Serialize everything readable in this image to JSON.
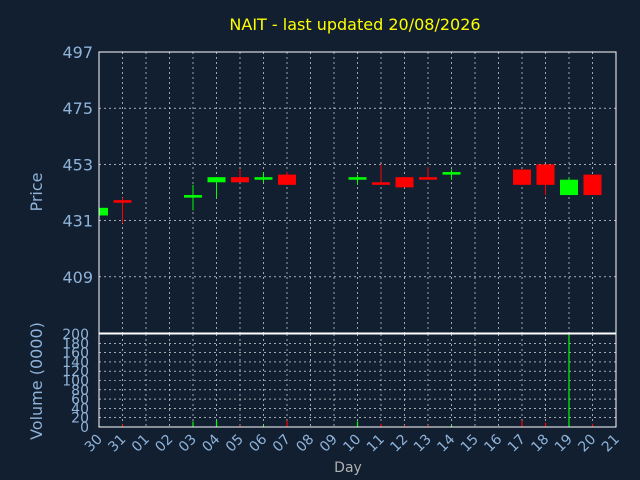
{
  "chart_data": [
    {
      "type": "candlestick",
      "title": "NAIT - last updated 20/08/2026",
      "ylabel": "Price",
      "ylim": [
        387,
        497
      ],
      "yticks": [
        497,
        475,
        453,
        431,
        409
      ],
      "x": [
        "30",
        "31",
        "01",
        "02",
        "03",
        "04",
        "05",
        "06",
        "07",
        "08",
        "09",
        "10",
        "11",
        "12",
        "13",
        "14",
        "15",
        "16",
        "17",
        "18",
        "19",
        "20",
        "21"
      ],
      "colors": {
        "up": "#00ff00",
        "down": "#ff0000",
        "grid": "#ffffff"
      },
      "candles": [
        {
          "day": "30",
          "open": 433,
          "high": 437,
          "low": 433,
          "close": 436
        },
        {
          "day": "31",
          "open": 439,
          "high": 440,
          "low": 430,
          "close": 438
        },
        {
          "day": "03",
          "open": 440,
          "high": 445,
          "low": 435,
          "close": 441
        },
        {
          "day": "04",
          "open": 446,
          "high": 448,
          "low": 440,
          "close": 448
        },
        {
          "day": "05",
          "open": 448,
          "high": 451,
          "low": 446,
          "close": 446
        },
        {
          "day": "06",
          "open": 447,
          "high": 450,
          "low": 446,
          "close": 448
        },
        {
          "day": "07",
          "open": 449,
          "high": 450,
          "low": 445,
          "close": 445
        },
        {
          "day": "10",
          "open": 447,
          "high": 449,
          "low": 445,
          "close": 448
        },
        {
          "day": "11",
          "open": 446,
          "high": 453,
          "low": 445,
          "close": 445
        },
        {
          "day": "12",
          "open": 448,
          "high": 448,
          "low": 444,
          "close": 444
        },
        {
          "day": "13",
          "open": 448,
          "high": 452,
          "low": 447,
          "close": 447
        },
        {
          "day": "14",
          "open": 449,
          "high": 451,
          "low": 447,
          "close": 450
        },
        {
          "day": "17",
          "open": 451,
          "high": 451,
          "low": 445,
          "close": 445
        },
        {
          "day": "18",
          "open": 453,
          "high": 453,
          "low": 441,
          "close": 445
        },
        {
          "day": "19",
          "open": 441,
          "high": 448,
          "low": 441,
          "close": 447
        },
        {
          "day": "20",
          "open": 449,
          "high": 449,
          "low": 441,
          "close": 441
        }
      ]
    },
    {
      "type": "bar",
      "ylabel": "Volume (0000)",
      "xlabel": "Day",
      "ylim": [
        0,
        200
      ],
      "yticks": [
        0,
        20,
        40,
        60,
        80,
        100,
        120,
        140,
        160,
        180,
        200
      ],
      "x": [
        "30",
        "31",
        "01",
        "02",
        "03",
        "04",
        "05",
        "06",
        "07",
        "08",
        "09",
        "10",
        "11",
        "12",
        "13",
        "14",
        "15",
        "16",
        "17",
        "18",
        "19",
        "20",
        "21"
      ],
      "volumes": [
        {
          "day": "30",
          "value": 3,
          "direction": "up"
        },
        {
          "day": "31",
          "value": 6,
          "direction": "down"
        },
        {
          "day": "03",
          "value": 12,
          "direction": "up"
        },
        {
          "day": "04",
          "value": 14,
          "direction": "up"
        },
        {
          "day": "05",
          "value": 4,
          "direction": "down"
        },
        {
          "day": "06",
          "value": 3,
          "direction": "up"
        },
        {
          "day": "07",
          "value": 14,
          "direction": "down"
        },
        {
          "day": "10",
          "value": 12,
          "direction": "up"
        },
        {
          "day": "11",
          "value": 7,
          "direction": "down"
        },
        {
          "day": "12",
          "value": 4,
          "direction": "down"
        },
        {
          "day": "13",
          "value": 4,
          "direction": "down"
        },
        {
          "day": "14",
          "value": 3,
          "direction": "up"
        },
        {
          "day": "17",
          "value": 14,
          "direction": "down"
        },
        {
          "day": "18",
          "value": 9,
          "direction": "down"
        },
        {
          "day": "19",
          "value": 200,
          "direction": "up"
        },
        {
          "day": "20",
          "value": 7,
          "direction": "down"
        }
      ]
    }
  ]
}
